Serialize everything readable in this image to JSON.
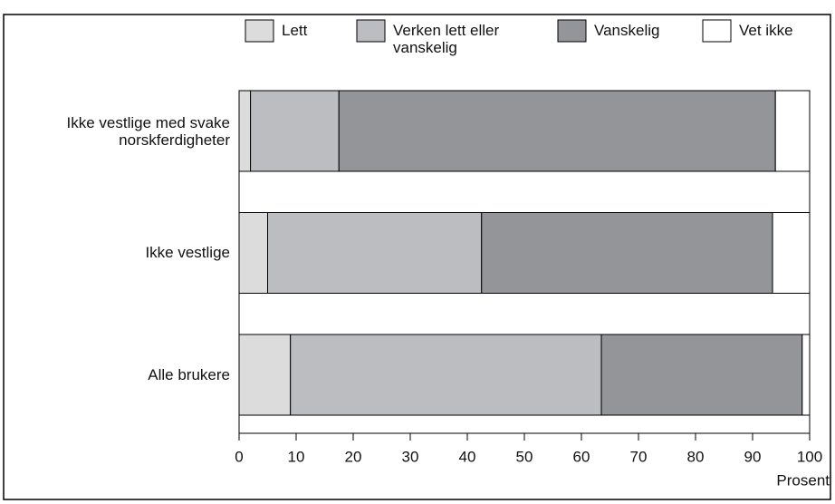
{
  "chart_data": {
    "type": "stacked_barh",
    "categories": [
      "Ikke vestlige med svake norskferdigheter",
      "Ikke vestlige",
      "Alle brukere"
    ],
    "series": [
      {
        "name": "Lett",
        "color": "#dcdcdd",
        "values": [
          2,
          5,
          9
        ]
      },
      {
        "name": "Verken lett eller vanskelig",
        "color": "#bcbdc0",
        "values": [
          15.5,
          37.5,
          54.5
        ]
      },
      {
        "name": "Vanskelig",
        "color": "#939598",
        "values": [
          76.5,
          51,
          35.2
        ]
      },
      {
        "name": "Vet ikke",
        "color": "#ffffff",
        "values": [
          6,
          6.5,
          1.3
        ]
      }
    ],
    "xlabel": "Prosent",
    "xlim": [
      0,
      100
    ],
    "xticks": [
      0,
      10,
      20,
      30,
      40,
      50,
      60,
      70,
      80,
      90,
      100
    ],
    "legend": "top"
  }
}
